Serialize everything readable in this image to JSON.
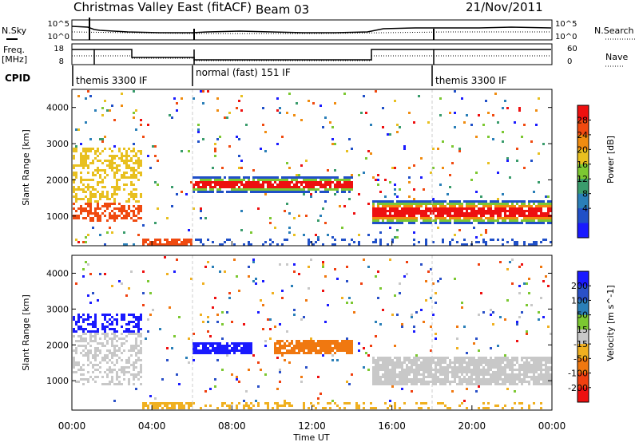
{
  "header": {
    "title": "Christmas Valley East (fitACF)",
    "beam": "Beam 03",
    "date": "21/Nov/2011"
  },
  "top_panels": {
    "nsky_label": "N.Sky",
    "nsearch_label": "N.Search",
    "nsky_ticks": [
      "10^5",
      "10^0"
    ],
    "nsearch_ticks": [
      "10^5",
      "10^0"
    ],
    "freq_label_1": "Freq.",
    "freq_label_2": "[MHz]",
    "freq_ticks": [
      "18",
      "8"
    ],
    "nave_label": "Nave",
    "nave_ticks": [
      "60",
      "0"
    ],
    "cpid_label": "CPID",
    "cpid_segments": [
      {
        "label": "themis 3300 IF",
        "start_h": 0,
        "end_h": 6
      },
      {
        "label": "normal (fast) 151 IF",
        "start_h": 6,
        "end_h": 18
      },
      {
        "label": "themis 3300 IF",
        "start_h": 18,
        "end_h": 24
      }
    ]
  },
  "chart_data": [
    {
      "type": "heatmap",
      "title": "",
      "ylabel": "Slant Range [km]",
      "xlabel": "",
      "xlim": [
        0,
        24
      ],
      "ylim": [
        180,
        4500
      ],
      "yticks": [
        "1000",
        "2000",
        "3000",
        "4000"
      ],
      "colorbar_label": "Power [dB]",
      "colorbar_ticks": [
        "4",
        "8",
        "12",
        "16",
        "20",
        "24",
        "28"
      ],
      "colorbar_colors": [
        "#1a1aff",
        "#2050c8",
        "#2a7fb8",
        "#3a9c6c",
        "#7cc832",
        "#e8c020",
        "#f08c10",
        "#f04a10",
        "#ee1010"
      ],
      "features": [
        {
          "name": "main band",
          "start_h": 6.0,
          "end_h": 14.0,
          "range_km": [
            1700,
            2100
          ]
        },
        {
          "name": "strong near echoes",
          "start_h": 15.0,
          "end_h": 24.0,
          "range_km": [
            800,
            1500
          ]
        }
      ]
    },
    {
      "type": "heatmap",
      "title": "",
      "ylabel": "Slant Range [km]",
      "xlabel": "Time UT",
      "xlim": [
        0,
        24
      ],
      "ylim": [
        180,
        4500
      ],
      "yticks": [
        "1000",
        "2000",
        "3000",
        "4000"
      ],
      "xticks": [
        "00:00",
        "04:00",
        "08:00",
        "12:00",
        "16:00",
        "20:00",
        "00:00"
      ],
      "colorbar_label": "Velocity [m s^-1]",
      "colorbar_ticks": [
        "200",
        "100",
        "50",
        "15",
        "-15",
        "-50",
        "-100",
        "-200"
      ],
      "colorbar_colors": [
        "#1a1aff",
        "#2a50c8",
        "#2a7fb8",
        "#7cc832",
        "#c8c8c8",
        "#f0b020",
        "#f07810",
        "#f04010",
        "#ee1010"
      ],
      "features": [
        {
          "name": "receding band",
          "start_h": 6.0,
          "end_h": 9.0,
          "range_km": [
            1800,
            2100
          ],
          "velocity": 150
        },
        {
          "name": "approaching band",
          "start_h": 10.0,
          "end_h": 14.0,
          "range_km": [
            1800,
            2200
          ],
          "velocity": -60
        },
        {
          "name": "ground scatter",
          "start_h": 15.0,
          "end_h": 24.0,
          "range_km": [
            900,
            1700
          ],
          "velocity": 0
        }
      ]
    }
  ]
}
